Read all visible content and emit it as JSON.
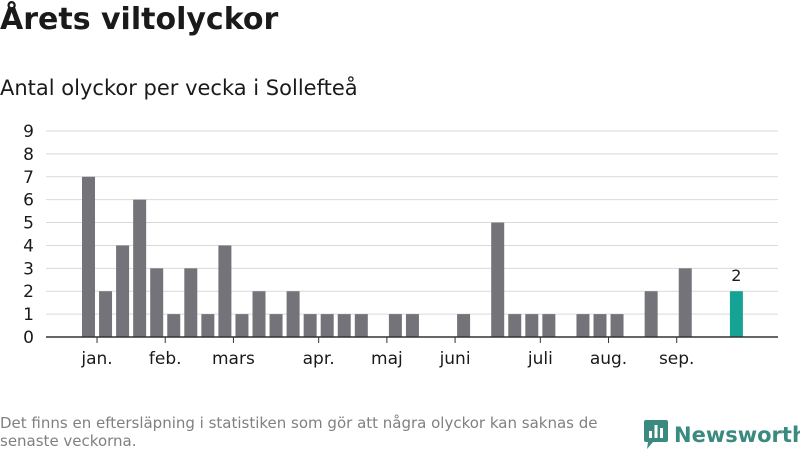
{
  "header": {
    "title": "Årets viltolyckor",
    "subtitle": "Antal olyckor per vecka i Sollefteå"
  },
  "footer": {
    "note": "Det finns en eftersläpning i statistiken som gör att några olyckor kan saknas de senaste veckorna.",
    "brand": "Newsworthy"
  },
  "colors": {
    "bar": "#75737a",
    "highlight": "#15a396",
    "grid": "#d9d9d9",
    "axis": "#333333",
    "brand": "#3a8a80"
  },
  "chart_data": {
    "type": "bar",
    "title": "Antal olyckor per vecka i Sollefteå",
    "xlabel": "",
    "ylabel": "",
    "ylim": [
      0,
      9
    ],
    "yticks": [
      0,
      1,
      2,
      3,
      4,
      5,
      6,
      7,
      8,
      9
    ],
    "grid": true,
    "weeks": [
      1,
      2,
      3,
      4,
      5,
      6,
      7,
      8,
      9,
      10,
      11,
      12,
      13,
      14,
      15,
      16,
      17,
      18,
      19,
      20,
      21,
      22,
      23,
      24,
      25,
      26,
      27,
      28,
      29,
      30,
      31,
      32,
      33,
      34,
      35,
      36,
      37,
      38,
      39,
      40
    ],
    "values": [
      7,
      2,
      4,
      6,
      3,
      1,
      3,
      1,
      4,
      1,
      2,
      1,
      2,
      1,
      1,
      1,
      1,
      0,
      1,
      1,
      0,
      0,
      1,
      0,
      5,
      1,
      1,
      1,
      0,
      1,
      1,
      1,
      0,
      2,
      0,
      3,
      0,
      0,
      2,
      null
    ],
    "highlight_index": 38,
    "highlight_label": "2",
    "month_labels": [
      {
        "label": "jan.",
        "week": 1.5
      },
      {
        "label": "feb.",
        "week": 5.5
      },
      {
        "label": "mars",
        "week": 9.5
      },
      {
        "label": "apr.",
        "week": 14.5
      },
      {
        "label": "maj",
        "week": 18.5
      },
      {
        "label": "juni",
        "week": 22.5
      },
      {
        "label": "juli",
        "week": 27.5
      },
      {
        "label": "aug.",
        "week": 31.5
      },
      {
        "label": "sep.",
        "week": 35.5
      }
    ]
  }
}
